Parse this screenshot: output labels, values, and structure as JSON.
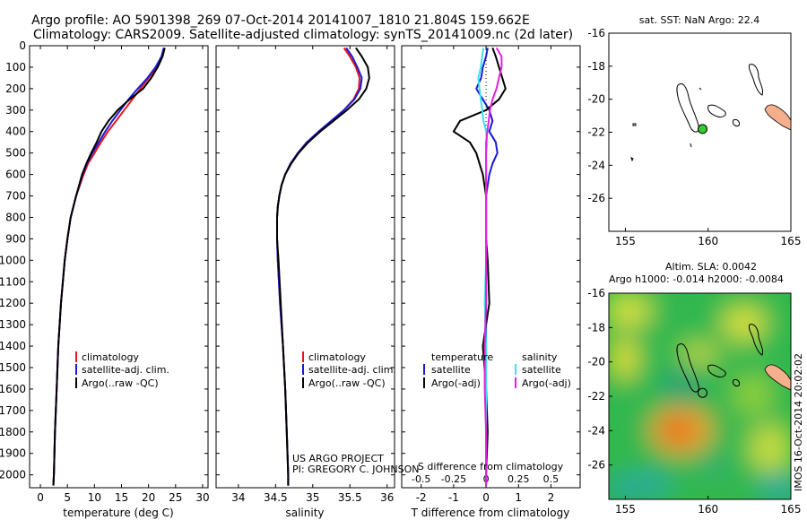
{
  "titles": {
    "line1": "Argo profile: AO 5901398_269 07-Oct-2014 20141007_1810 21.804S 159.662E",
    "line2": "Climatology: CARS2009. Satellite-adjusted climatology: synTS_20141009.nc (2d later)"
  },
  "colors": {
    "climatology": "#e8141c",
    "satellite": "#1a1ad6",
    "argo": "#000000",
    "sat_s": "#3fe0f0",
    "argo_s": "#e020e0",
    "land": "#f4b08c",
    "float": "#33cc33"
  },
  "chart_data": [
    {
      "type": "line",
      "name": "temperature-profile",
      "xlabel": "temperature (deg C)",
      "ylabel": "",
      "xlim": [
        -2,
        31
      ],
      "ylim": [
        2060,
        0
      ],
      "xticks": [
        "0",
        "5",
        "10",
        "15",
        "20",
        "25",
        "30"
      ],
      "xtick_values": [
        0,
        5,
        10,
        15,
        20,
        25,
        30
      ],
      "yticks": [
        "0",
        "100",
        "200",
        "300",
        "400",
        "500",
        "600",
        "700",
        "800",
        "900",
        "1000",
        "1100",
        "1200",
        "1300",
        "1400",
        "1500",
        "1600",
        "1700",
        "1800",
        "1900",
        "2000"
      ],
      "ytick_values": [
        0,
        100,
        200,
        300,
        400,
        500,
        600,
        700,
        800,
        900,
        1000,
        1100,
        1200,
        1300,
        1400,
        1500,
        1600,
        1700,
        1800,
        1900,
        2000
      ],
      "depth": [
        10,
        50,
        100,
        150,
        200,
        250,
        300,
        350,
        400,
        450,
        500,
        550,
        600,
        700,
        800,
        900,
        1000,
        1200,
        1400,
        1600,
        1800,
        2000,
        2050
      ],
      "series": [
        {
          "name": "climatology",
          "values": [
            22.8,
            22.5,
            21.5,
            20.0,
            18.5,
            17.0,
            15.5,
            14.0,
            12.5,
            11.2,
            10.0,
            8.8,
            8.0,
            6.6,
            5.6,
            5.0,
            4.5,
            3.8,
            3.3,
            3.0,
            2.7,
            2.5,
            2.4
          ]
        },
        {
          "name": "satellite-adj. clim.",
          "values": [
            22.8,
            22.4,
            21.3,
            19.8,
            18.0,
            16.3,
            14.8,
            13.3,
            12.0,
            10.8,
            9.6,
            8.6,
            7.8,
            6.6,
            5.6,
            5.0,
            4.5,
            3.8,
            3.3,
            3.0,
            2.7,
            2.5,
            2.4
          ]
        },
        {
          "name": "Argo(..raw -QC)",
          "values": [
            23.0,
            22.6,
            21.7,
            20.5,
            19.0,
            16.5,
            14.3,
            12.6,
            11.3,
            10.4,
            9.4,
            8.5,
            7.7,
            6.6,
            5.6,
            5.0,
            4.5,
            3.8,
            3.3,
            3.0,
            2.7,
            2.5,
            2.4
          ]
        }
      ],
      "legend": [
        "climatology",
        "satellite-adj. clim.",
        "Argo(..raw -QC)"
      ]
    },
    {
      "type": "line",
      "name": "salinity-profile",
      "xlabel": "salinity",
      "xlim": [
        33.7,
        36.1
      ],
      "ylim": [
        2060,
        0
      ],
      "xticks": [
        "34",
        "34.5",
        "35",
        "35.5",
        "36"
      ],
      "xtick_values": [
        34,
        34.5,
        35,
        35.5,
        36
      ],
      "depth": [
        10,
        50,
        100,
        150,
        200,
        250,
        300,
        350,
        400,
        450,
        500,
        550,
        600,
        650,
        700,
        750,
        800,
        900,
        1000,
        1200,
        1400,
        1600,
        1800,
        2000,
        2050
      ],
      "series": [
        {
          "name": "climatology",
          "values": [
            35.42,
            35.5,
            35.58,
            35.63,
            35.62,
            35.55,
            35.42,
            35.25,
            35.08,
            34.92,
            34.8,
            34.7,
            34.63,
            34.58,
            34.55,
            34.53,
            34.52,
            34.52,
            34.53,
            34.56,
            34.6,
            34.63,
            34.65,
            34.67,
            34.67
          ]
        },
        {
          "name": "satellite-adj. clim.",
          "values": [
            35.45,
            35.53,
            35.6,
            35.66,
            35.64,
            35.56,
            35.42,
            35.25,
            35.08,
            34.92,
            34.8,
            34.7,
            34.63,
            34.58,
            34.55,
            34.53,
            34.52,
            34.52,
            34.53,
            34.56,
            34.6,
            34.63,
            34.65,
            34.67,
            34.67
          ]
        },
        {
          "name": "Argo(..raw -QC)",
          "values": [
            35.58,
            35.66,
            35.74,
            35.76,
            35.72,
            35.62,
            35.46,
            35.28,
            35.1,
            34.94,
            34.81,
            34.71,
            34.63,
            34.58,
            34.55,
            34.53,
            34.52,
            34.52,
            34.54,
            34.57,
            34.6,
            34.63,
            34.65,
            34.67,
            34.67
          ]
        }
      ],
      "legend": [
        "climatology",
        "satellite-adj. clim.",
        "Argo(..raw -QC)"
      ],
      "annotation": [
        "US ARGO PROJECT",
        "PI: GREGORY C. JOHNSON"
      ]
    },
    {
      "type": "line",
      "name": "difference-profile",
      "xlabel": "T difference from climatology",
      "xlabel_top": "S difference from climatology",
      "xlim": [
        -2.6,
        2.9
      ],
      "ylim": [
        2060,
        0
      ],
      "xticks": [
        "-2",
        "-1",
        "0",
        "1",
        "2"
      ],
      "xtick_values": [
        -2,
        -1,
        0,
        1,
        2
      ],
      "sticks": [
        "-0.5",
        "-0.25",
        "0",
        "0.25",
        "0.5"
      ],
      "stick_values_as_T": [
        -2,
        -1,
        0,
        1,
        2
      ],
      "depth": [
        10,
        50,
        100,
        150,
        200,
        250,
        300,
        350,
        400,
        450,
        500,
        550,
        600,
        700,
        800,
        900,
        1000,
        1200,
        1400,
        1600,
        1800,
        2000,
        2050
      ],
      "series": [
        {
          "name": "T satellite",
          "values": [
            0.05,
            0.0,
            -0.1,
            -0.15,
            -0.3,
            -0.1,
            0.1,
            0.2,
            0.1,
            0.3,
            0.35,
            0.2,
            0.1,
            0.0,
            0.0,
            0.0,
            0.0,
            0.0,
            0.0,
            0.0,
            0.0,
            0.0,
            0.0
          ]
        },
        {
          "name": "T Argo(-adj)",
          "values": [
            0.2,
            0.3,
            0.4,
            0.5,
            0.6,
            0.4,
            0.0,
            -0.8,
            -1.0,
            -0.5,
            -0.3,
            -0.2,
            -0.1,
            0.0,
            0.0,
            0.0,
            0.05,
            0.1,
            -0.1,
            0.0,
            0.05,
            0.0,
            0.0
          ]
        },
        {
          "name": "S satellite",
          "values": [
            -0.02,
            -0.03,
            -0.04,
            -0.06,
            -0.05,
            -0.04,
            -0.03,
            -0.02,
            0.0,
            0.01,
            0.0,
            0.0,
            0.0,
            0.0,
            0.0,
            0.0,
            0.0,
            -0.01,
            0.0,
            0.0,
            0.0,
            0.0,
            0.0
          ]
        },
        {
          "name": "S Argo(-adj)",
          "values": [
            0.08,
            0.12,
            0.12,
            0.1,
            0.08,
            0.05,
            0.03,
            0.02,
            0.01,
            0.0,
            0.0,
            0.0,
            0.0,
            0.0,
            0.0,
            0.0,
            0.0,
            0.0,
            -0.01,
            -0.01,
            0.0,
            0.0,
            0.0
          ]
        }
      ],
      "legend_headers": [
        "temperature",
        "salinity"
      ],
      "legend": [
        "satellite",
        "Argo(-adj)",
        "satellite",
        "Argo(-adj)"
      ]
    },
    {
      "type": "scatter",
      "name": "sst-map",
      "title": "sat. SST: NaN Argo: 22.4",
      "xlim": [
        154,
        165
      ],
      "ylim": [
        -28,
        -16
      ],
      "xticks": [
        "155",
        "160",
        "165"
      ],
      "yticks": [
        "-16",
        "-18",
        "-20",
        "-22",
        "-24",
        "-26"
      ],
      "float_position": {
        "lon": 159.662,
        "lat": -21.804
      }
    },
    {
      "type": "heatmap",
      "name": "sla-map",
      "title_line1": "Altim. SLA: 0.0042",
      "title_line2": "Argo h1000: -0.014 h2000: -0.0084",
      "xlim": [
        154,
        165
      ],
      "ylim": [
        -28,
        -16
      ],
      "xticks": [
        "155",
        "160",
        "165"
      ],
      "yticks": [
        "-16",
        "-18",
        "-20",
        "-22",
        "-24",
        "-26"
      ],
      "side_label": "IMOS 16-Oct-2014 20:02:02"
    }
  ]
}
